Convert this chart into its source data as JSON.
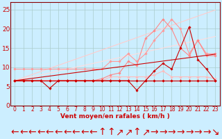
{
  "x": [
    0,
    1,
    2,
    3,
    4,
    5,
    6,
    7,
    8,
    9,
    10,
    11,
    12,
    13,
    14,
    15,
    16,
    17,
    18,
    19,
    20,
    21,
    22,
    23
  ],
  "series": [
    {
      "name": "flat_dark_red",
      "color": "#cc0000",
      "linewidth": 0.8,
      "marker": "D",
      "markersize": 1.8,
      "zorder": 5,
      "y": [
        6.5,
        6.5,
        6.5,
        6.5,
        6.5,
        6.5,
        6.5,
        6.5,
        6.5,
        6.5,
        6.5,
        6.5,
        6.5,
        6.5,
        6.5,
        6.5,
        6.5,
        6.5,
        6.5,
        6.5,
        6.5,
        6.5,
        6.5,
        6.5
      ]
    },
    {
      "name": "bumpy_dark",
      "color": "#cc0000",
      "linewidth": 0.8,
      "marker": "D",
      "markersize": 1.8,
      "zorder": 4,
      "y": [
        6.5,
        6.5,
        6.5,
        6.5,
        4.5,
        6.5,
        6.5,
        6.5,
        6.5,
        6.5,
        6.5,
        6.5,
        6.5,
        6.5,
        4.0,
        6.5,
        9.0,
        11.0,
        9.5,
        15.0,
        20.5,
        12.0,
        9.5,
        6.5
      ]
    },
    {
      "name": "flat_medium",
      "color": "#ff6666",
      "linewidth": 0.8,
      "marker": "D",
      "markersize": 1.8,
      "zorder": 3,
      "y": [
        6.5,
        6.5,
        6.5,
        6.5,
        6.5,
        6.5,
        6.5,
        6.5,
        6.5,
        6.5,
        6.5,
        6.5,
        6.5,
        6.5,
        6.5,
        6.5,
        6.5,
        6.5,
        6.5,
        6.5,
        6.5,
        6.5,
        6.5,
        6.5
      ]
    },
    {
      "name": "rising_light1",
      "color": "#ff9999",
      "linewidth": 0.8,
      "marker": "D",
      "markersize": 1.8,
      "zorder": 2,
      "y": [
        9.5,
        9.5,
        9.5,
        9.5,
        9.5,
        9.5,
        9.5,
        9.5,
        9.5,
        9.5,
        9.5,
        11.5,
        11.5,
        13.5,
        11.5,
        13.5,
        17.0,
        19.5,
        22.5,
        20.0,
        13.5,
        17.0,
        13.5,
        13.5
      ]
    },
    {
      "name": "bumpy_light2",
      "color": "#ffbbbb",
      "linewidth": 0.8,
      "marker": "D",
      "markersize": 1.8,
      "zorder": 2,
      "y": [
        6.5,
        6.5,
        6.5,
        6.5,
        6.5,
        6.5,
        6.5,
        6.5,
        6.5,
        6.5,
        6.5,
        7.5,
        7.5,
        7.5,
        7.5,
        7.5,
        8.0,
        9.0,
        7.5,
        7.5,
        7.5,
        7.5,
        7.5,
        7.0
      ]
    },
    {
      "name": "rising_light3",
      "color": "#ff8888",
      "linewidth": 0.8,
      "marker": "D",
      "markersize": 1.8,
      "zorder": 2,
      "y": [
        6.5,
        6.5,
        6.5,
        6.5,
        6.5,
        6.5,
        6.5,
        6.5,
        6.5,
        6.5,
        7.0,
        8.0,
        8.5,
        11.5,
        10.5,
        17.5,
        19.5,
        22.5,
        20.0,
        15.0,
        13.0,
        17.0,
        13.0,
        13.0
      ]
    },
    {
      "name": "slope_red",
      "color": "#cc0000",
      "linewidth": 0.8,
      "marker": null,
      "zorder": 4,
      "y": [
        6.5,
        6.8,
        7.1,
        7.4,
        7.7,
        8.0,
        8.3,
        8.6,
        8.9,
        9.2,
        9.5,
        9.8,
        10.1,
        10.4,
        10.7,
        11.0,
        11.3,
        11.6,
        11.9,
        12.2,
        12.5,
        12.8,
        13.1,
        13.4
      ]
    },
    {
      "name": "slope_light_upper",
      "color": "#ffcccc",
      "linewidth": 0.8,
      "marker": null,
      "zorder": 1,
      "y": [
        6.5,
        7.3,
        8.1,
        8.9,
        9.7,
        10.5,
        11.3,
        12.1,
        12.9,
        13.7,
        14.5,
        15.3,
        16.1,
        16.9,
        17.7,
        18.5,
        19.3,
        20.1,
        20.9,
        21.7,
        22.5,
        23.3,
        24.1,
        24.9
      ]
    },
    {
      "name": "slope_light_mid",
      "color": "#ffdddd",
      "linewidth": 0.8,
      "marker": null,
      "zorder": 1,
      "y": [
        6.5,
        7.0,
        7.5,
        8.0,
        8.5,
        9.0,
        9.5,
        10.0,
        10.5,
        11.0,
        11.5,
        12.0,
        12.5,
        13.0,
        13.5,
        14.0,
        14.5,
        15.0,
        15.5,
        16.0,
        16.5,
        17.0,
        17.5,
        18.0
      ]
    }
  ],
  "xlabel": "Vent moyen/en rafales ( km/h )",
  "xlim": [
    -0.5,
    23.5
  ],
  "ylim": [
    0,
    27
  ],
  "yticks": [
    0,
    5,
    10,
    15,
    20,
    25
  ],
  "xticks": [
    0,
    1,
    2,
    3,
    4,
    5,
    6,
    7,
    8,
    9,
    10,
    11,
    12,
    13,
    14,
    15,
    16,
    17,
    18,
    19,
    20,
    21,
    22,
    23
  ],
  "bg_color": "#cceeff",
  "grid_color": "#aacccc",
  "tick_color": "#cc0000",
  "label_color": "#cc0000",
  "xlabel_fontsize": 6.5,
  "tick_fontsize": 5.5,
  "ytick_fontsize": 6.5,
  "arrow_row": "←←←←←←←←←←↑↑↗↗↑↗→→→→→→→↘"
}
